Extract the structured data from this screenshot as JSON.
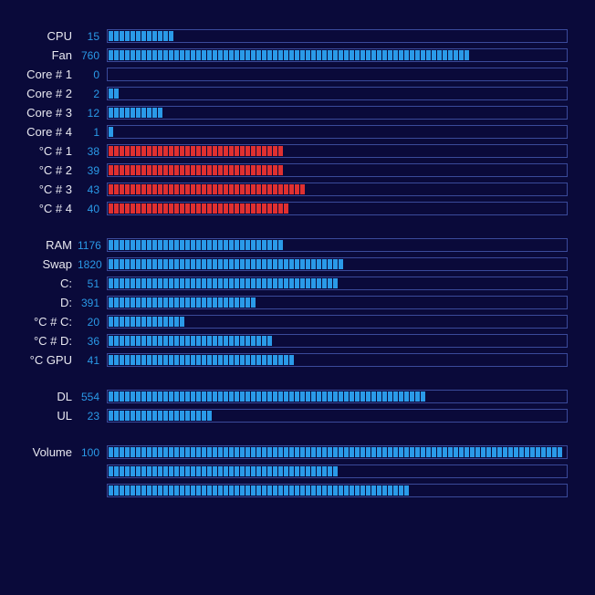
{
  "background_color": "#0a0a3a",
  "border_color": "#3a4a9a",
  "label_color": "#e8e8f0",
  "value_color": "#2a9ae8",
  "segment_total": 83,
  "colors": {
    "blue": "#2a9ae8",
    "red": "#e03030"
  },
  "groups": [
    {
      "rows": [
        {
          "label": "CPU",
          "value": "15",
          "fill_pct": 15,
          "color": "blue"
        },
        {
          "label": "Fan",
          "value": "760",
          "fill_pct": 80,
          "color": "blue"
        },
        {
          "label": "Core # 1",
          "value": "0",
          "fill_pct": 0,
          "color": "blue"
        },
        {
          "label": "Core # 2",
          "value": "2",
          "fill_pct": 2,
          "color": "blue"
        },
        {
          "label": "Core # 3",
          "value": "12",
          "fill_pct": 12,
          "color": "blue"
        },
        {
          "label": "Core # 4",
          "value": "1",
          "fill_pct": 1,
          "color": "blue"
        },
        {
          "label": "°C # 1",
          "value": "38",
          "fill_pct": 38,
          "color": "red"
        },
        {
          "label": "°C # 2",
          "value": "39",
          "fill_pct": 39,
          "color": "red"
        },
        {
          "label": "°C # 3",
          "value": "43",
          "fill_pct": 43,
          "color": "red"
        },
        {
          "label": "°C # 4",
          "value": "40",
          "fill_pct": 40,
          "color": "red"
        }
      ]
    },
    {
      "rows": [
        {
          "label": "RAM",
          "value": "1176",
          "fill_pct": 38,
          "color": "blue"
        },
        {
          "label": "Swap",
          "value": "1820",
          "fill_pct": 52,
          "color": "blue"
        },
        {
          "label": "C:",
          "value": "51",
          "fill_pct": 51,
          "color": "blue"
        },
        {
          "label": "D:",
          "value": "391",
          "fill_pct": 33,
          "color": "blue"
        },
        {
          "label": "°C # C:",
          "value": "20",
          "fill_pct": 17,
          "color": "blue"
        },
        {
          "label": "°C # D:",
          "value": "36",
          "fill_pct": 36,
          "color": "blue"
        },
        {
          "label": "°C GPU",
          "value": "41",
          "fill_pct": 41,
          "color": "blue"
        }
      ]
    },
    {
      "rows": [
        {
          "label": "DL",
          "value": "554",
          "fill_pct": 70,
          "color": "blue"
        },
        {
          "label": "UL",
          "value": "23",
          "fill_pct": 23,
          "color": "blue"
        }
      ]
    },
    {
      "rows": [
        {
          "label": "Volume",
          "value": "100",
          "fill_pct": 100,
          "color": "blue"
        },
        {
          "label": "",
          "value": "",
          "fill_pct": 50,
          "color": "blue"
        },
        {
          "label": "",
          "value": "",
          "fill_pct": 66,
          "color": "blue"
        }
      ]
    }
  ]
}
